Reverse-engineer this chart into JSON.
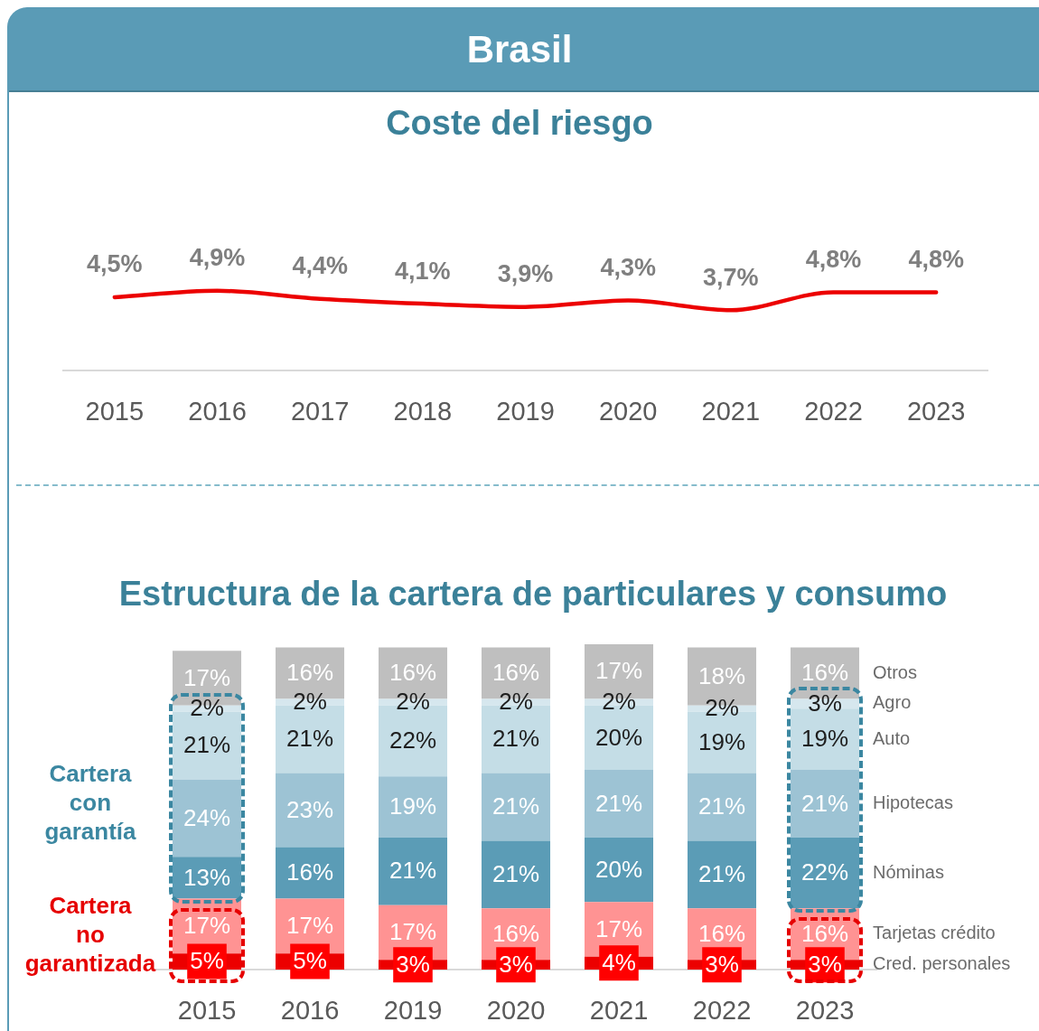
{
  "chart_data": [
    {
      "type": "line",
      "title": "Brasil",
      "subtitle": "Coste del riesgo",
      "categories": [
        "2015",
        "2016",
        "2017",
        "2018",
        "2019",
        "2020",
        "2021",
        "2022",
        "2023"
      ],
      "values": [
        4.5,
        4.9,
        4.4,
        4.1,
        3.9,
        4.3,
        3.7,
        4.8,
        4.8
      ],
      "color": "#ec0000",
      "value_labels": [
        "4,5%",
        "4,9%",
        "4,4%",
        "4,1%",
        "3,9%",
        "4,3%",
        "3,7%",
        "4,8%",
        "4,8%"
      ],
      "marker": "none",
      "tick_labels": "x"
    },
    {
      "type": "bar",
      "stacked": true,
      "title": "Estructura de la cartera de particulares y consumo",
      "categories": [
        "2015",
        "2016",
        "2019",
        "2020",
        "2021",
        "2022",
        "2023"
      ],
      "series": [
        {
          "name": "Cred. personales",
          "color": "#ec0000",
          "values": [
            5,
            5,
            3,
            3,
            4,
            3,
            3
          ],
          "value_labels": [
            "5%",
            "5%",
            "3%",
            "3%",
            "4%",
            "3%",
            "3%"
          ]
        },
        {
          "name": "Tarjetas crédito",
          "color": "#ff9393",
          "values": [
            17,
            17,
            17,
            16,
            17,
            16,
            16
          ],
          "value_labels": [
            "17%",
            "17%",
            "17%",
            "16%",
            "17%",
            "16%",
            "16%"
          ]
        },
        {
          "name": "Nóminas",
          "color": "#5b9cb6",
          "values": [
            13,
            16,
            21,
            21,
            20,
            21,
            22
          ],
          "value_labels": [
            "13%",
            "16%",
            "21%",
            "21%",
            "20%",
            "21%",
            "22%"
          ]
        },
        {
          "name": "Hipotecas",
          "color": "#9dc3d4",
          "values": [
            24,
            23,
            19,
            21,
            21,
            21,
            21
          ],
          "value_labels": [
            "24%",
            "23%",
            "19%",
            "21%",
            "21%",
            "21%",
            "21%"
          ]
        },
        {
          "name": "Auto",
          "color": "#c4dde6",
          "values": [
            21,
            21,
            22,
            21,
            20,
            19,
            19
          ],
          "value_labels": [
            "21%",
            "21%",
            "22%",
            "21%",
            "20%",
            "19%",
            "19%"
          ]
        },
        {
          "name": "Agro",
          "color": "#d6e7ee",
          "values": [
            2,
            2,
            2,
            2,
            2,
            2,
            3
          ],
          "value_labels": [
            "2%",
            "2%",
            "2%",
            "2%",
            "2%",
            "2%",
            "3%"
          ]
        },
        {
          "name": "Otros",
          "color": "#bfbfbf",
          "values": [
            17,
            16,
            16,
            16,
            17,
            18,
            16
          ],
          "value_labels": [
            "17%",
            "16%",
            "16%",
            "16%",
            "17%",
            "18%",
            "16%"
          ]
        }
      ],
      "annotations": [
        "Cartera con garantía",
        "Cartera no garantizada"
      ],
      "tick_labels": "x"
    }
  ]
}
